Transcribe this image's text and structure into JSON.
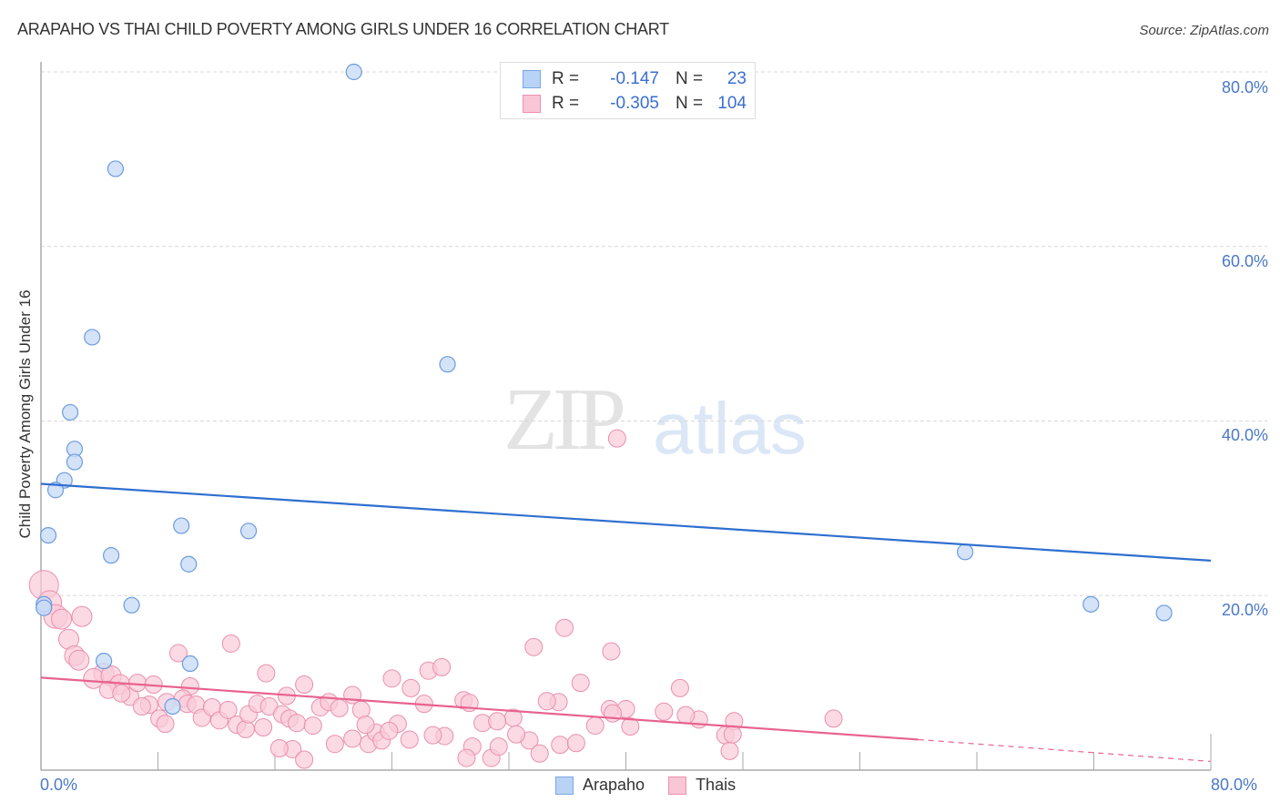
{
  "header": {
    "title": "ARAPAHO VS THAI CHILD POVERTY AMONG GIRLS UNDER 16 CORRELATION CHART",
    "source": "Source: ZipAtlas.com"
  },
  "watermark": {
    "zip": "ZIP",
    "atlas": "atlas"
  },
  "legend": {
    "rows": [
      {
        "r_label": "R =",
        "r_value": "-0.147",
        "n_label": "N =",
        "n_value": "23",
        "swatch_fill": "#b8d3f5",
        "swatch_border": "#7aa6e3"
      },
      {
        "r_label": "R =",
        "r_value": "-0.305",
        "n_label": "N =",
        "n_value": "104",
        "swatch_fill": "#f9c6d5",
        "swatch_border": "#ee8fb0"
      }
    ]
  },
  "bottom_legend": [
    {
      "label": "Arapaho",
      "fill": "#b8d3f5",
      "border": "#7aa6e3"
    },
    {
      "label": "Thais",
      "fill": "#f9c6d5",
      "border": "#ee8fb0"
    }
  ],
  "axes": {
    "y_label": "Child Poverty Among Girls Under 16",
    "y_ticks": [
      "80.0%",
      "60.0%",
      "40.0%",
      "20.0%"
    ],
    "x_ticks": [
      "0.0%",
      "80.0%"
    ]
  },
  "colors": {
    "arapaho_fill": "#c9dcf6",
    "arapaho_stroke": "#6c9ce0",
    "arapaho_line": "#2f6fd0",
    "thais_fill": "#f9cad8",
    "thais_stroke": "#ea8fae",
    "thais_line": "#e8628f",
    "grid": "#d8d8d8",
    "axis": "#aaaaaa"
  },
  "chart_data": {
    "type": "scatter",
    "title": "ARAPAHO VS THAI CHILD POVERTY AMONG GIRLS UNDER 16 CORRELATION CHART",
    "xlabel": "",
    "ylabel": "Child Poverty Among Girls Under 16",
    "xlim": [
      0,
      80
    ],
    "ylim": [
      0,
      80
    ],
    "x_tick_labels": [
      "0.0%",
      "80.0%"
    ],
    "y_tick_labels": [
      "20.0%",
      "40.0%",
      "60.0%",
      "80.0%"
    ],
    "grid": true,
    "legend_position": "top-center",
    "series": [
      {
        "name": "Arapaho",
        "r": -0.147,
        "n": 23,
        "trend": {
          "x0": 0,
          "y0": 32.8,
          "x1": 80,
          "y1": 24.0
        },
        "points": [
          [
            21.4,
            80.0
          ],
          [
            5.1,
            68.9
          ],
          [
            3.5,
            49.6
          ],
          [
            27.8,
            46.5
          ],
          [
            2.0,
            41.0
          ],
          [
            2.3,
            36.8
          ],
          [
            2.3,
            35.3
          ],
          [
            1.6,
            33.2
          ],
          [
            1.0,
            32.1
          ],
          [
            9.6,
            28.0
          ],
          [
            14.2,
            27.4
          ],
          [
            0.5,
            26.9
          ],
          [
            4.8,
            24.6
          ],
          [
            10.1,
            23.6
          ],
          [
            6.2,
            18.9
          ],
          [
            0.2,
            19.0
          ],
          [
            4.3,
            12.5
          ],
          [
            10.2,
            12.2
          ],
          [
            9.0,
            7.3
          ],
          [
            63.2,
            25.0
          ],
          [
            71.8,
            19.0
          ],
          [
            76.8,
            18.0
          ],
          [
            0.2,
            18.6
          ]
        ]
      },
      {
        "name": "Thais",
        "r": -0.305,
        "n": 104,
        "trend": {
          "x0": 0,
          "y0": 10.6,
          "x1": 60.0,
          "y1": 3.5,
          "dashed_to": {
            "x": 80,
            "y": 1.0
          }
        },
        "points": [
          [
            0.2,
            21.2
          ],
          [
            0.6,
            19.2
          ],
          [
            1.0,
            17.6
          ],
          [
            1.4,
            17.3
          ],
          [
            2.8,
            17.6
          ],
          [
            1.9,
            15.0
          ],
          [
            2.3,
            13.1
          ],
          [
            2.6,
            12.6
          ],
          [
            4.3,
            11.1
          ],
          [
            3.6,
            10.5
          ],
          [
            4.8,
            10.8
          ],
          [
            5.4,
            9.8
          ],
          [
            4.6,
            9.2
          ],
          [
            6.1,
            8.4
          ],
          [
            6.6,
            10.0
          ],
          [
            7.7,
            9.8
          ],
          [
            7.4,
            7.5
          ],
          [
            5.5,
            8.8
          ],
          [
            6.9,
            7.3
          ],
          [
            8.6,
            7.8
          ],
          [
            8.1,
            5.9
          ],
          [
            8.5,
            5.3
          ],
          [
            9.4,
            13.4
          ],
          [
            10.2,
            9.6
          ],
          [
            9.7,
            8.2
          ],
          [
            10.0,
            7.6
          ],
          [
            10.6,
            7.5
          ],
          [
            11.0,
            6.0
          ],
          [
            11.7,
            7.2
          ],
          [
            12.2,
            5.7
          ],
          [
            12.8,
            6.9
          ],
          [
            13.0,
            14.5
          ],
          [
            13.4,
            5.2
          ],
          [
            14.0,
            4.7
          ],
          [
            14.2,
            6.4
          ],
          [
            14.8,
            7.6
          ],
          [
            15.4,
            11.1
          ],
          [
            15.6,
            7.3
          ],
          [
            16.5,
            6.4
          ],
          [
            16.8,
            8.5
          ],
          [
            17.0,
            5.9
          ],
          [
            17.5,
            5.4
          ],
          [
            18.0,
            9.8
          ],
          [
            18.6,
            5.1
          ],
          [
            19.1,
            7.2
          ],
          [
            19.7,
            7.8
          ],
          [
            20.4,
            7.1
          ],
          [
            20.1,
            3.0
          ],
          [
            21.3,
            8.6
          ],
          [
            21.9,
            6.9
          ],
          [
            22.4,
            3.0
          ],
          [
            22.9,
            4.3
          ],
          [
            23.3,
            3.4
          ],
          [
            24.0,
            10.5
          ],
          [
            24.4,
            5.3
          ],
          [
            25.3,
            9.4
          ],
          [
            26.5,
            11.4
          ],
          [
            27.4,
            11.8
          ],
          [
            26.2,
            7.6
          ],
          [
            27.6,
            3.9
          ],
          [
            28.9,
            8.0
          ],
          [
            29.3,
            7.7
          ],
          [
            29.5,
            2.7
          ],
          [
            30.2,
            5.4
          ],
          [
            30.8,
            1.4
          ],
          [
            31.3,
            2.7
          ],
          [
            32.3,
            6.0
          ],
          [
            33.4,
            3.4
          ],
          [
            34.1,
            1.9
          ],
          [
            33.7,
            14.1
          ],
          [
            35.4,
            7.8
          ],
          [
            35.5,
            2.9
          ],
          [
            35.8,
            16.3
          ],
          [
            36.9,
            10.0
          ],
          [
            39.0,
            13.6
          ],
          [
            37.9,
            5.1
          ],
          [
            38.9,
            7.0
          ],
          [
            40.0,
            7.0
          ],
          [
            40.3,
            5.0
          ],
          [
            39.4,
            38.0
          ],
          [
            43.7,
            9.4
          ],
          [
            45.0,
            5.8
          ],
          [
            46.8,
            4.0
          ],
          [
            47.4,
            5.6
          ],
          [
            47.1,
            2.2
          ],
          [
            47.3,
            4.1
          ],
          [
            54.2,
            5.9
          ],
          [
            17.2,
            2.4
          ],
          [
            16.3,
            2.5
          ],
          [
            18.0,
            1.2
          ],
          [
            21.3,
            3.6
          ],
          [
            23.8,
            4.5
          ],
          [
            25.2,
            3.5
          ],
          [
            29.1,
            1.4
          ],
          [
            32.5,
            4.1
          ],
          [
            36.6,
            3.1
          ],
          [
            39.1,
            6.5
          ],
          [
            42.6,
            6.7
          ],
          [
            15.2,
            4.9
          ],
          [
            22.2,
            5.2
          ],
          [
            26.8,
            4.0
          ],
          [
            31.2,
            5.6
          ],
          [
            34.6,
            7.9
          ],
          [
            44.1,
            6.3
          ]
        ]
      }
    ]
  }
}
